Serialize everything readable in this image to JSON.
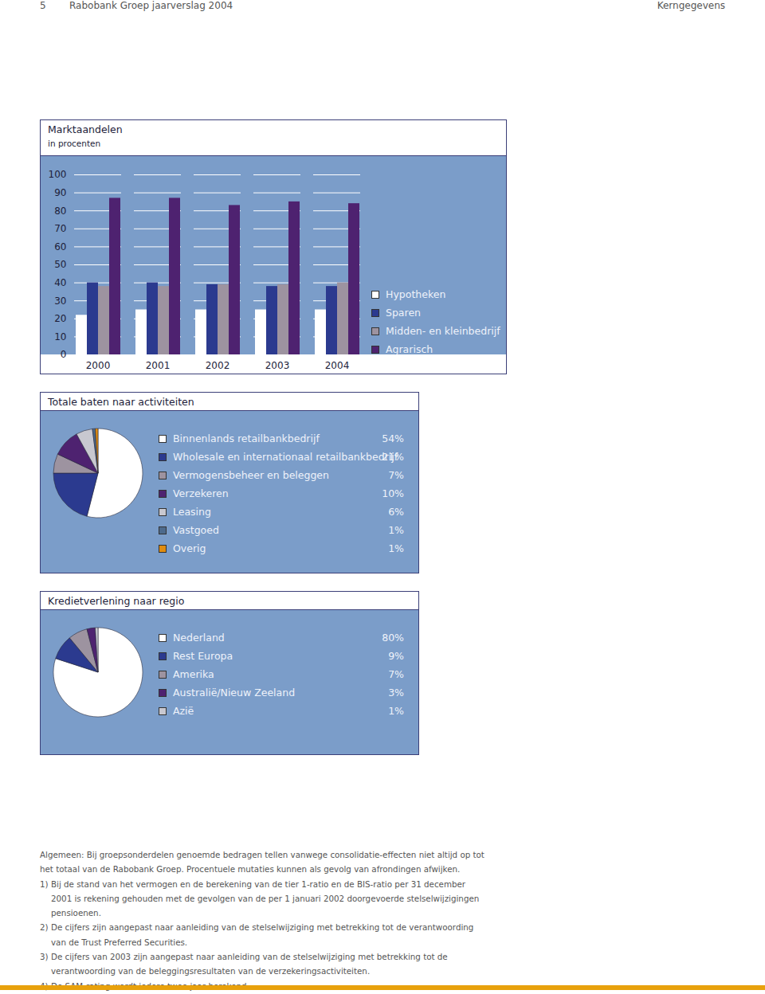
{
  "header": {
    "page": "5",
    "title": "Rabobank Groep jaarverslag 2004",
    "section": "Kerngegevens"
  },
  "chart_data": [
    {
      "type": "bar",
      "title": "Marktaandelen",
      "subtitle": "in procenten",
      "categories": [
        "2000",
        "2001",
        "2002",
        "2003",
        "2004"
      ],
      "series": [
        {
          "name": "Hypotheken",
          "color": "#ffffff",
          "values": [
            22,
            25,
            25,
            25,
            25
          ]
        },
        {
          "name": "Sparen",
          "color": "#2b3a8f",
          "values": [
            40,
            40,
            39,
            38,
            38
          ]
        },
        {
          "name": "Midden- en kleinbedrijf",
          "color": "#9d93a0",
          "values": [
            38,
            38,
            39,
            39,
            40
          ]
        },
        {
          "name": "Agrarisch",
          "color": "#4e2270",
          "values": [
            87,
            87,
            83,
            85,
            84
          ]
        }
      ],
      "ylim": [
        0,
        100
      ],
      "yticks": [
        0,
        10,
        20,
        30,
        40,
        50,
        60,
        70,
        80,
        90,
        100
      ],
      "grid": true,
      "legend": "right"
    },
    {
      "type": "pie",
      "title": "Totale baten naar activiteiten",
      "categories": [
        "Binnenlands retailbankbedrijf",
        "Wholesale en internationaal retailbankbedrijf",
        "Vermogensbeheer en beleggen",
        "Verzekeren",
        "Leasing",
        "Vastgoed",
        "Overig"
      ],
      "values": [
        54,
        21,
        7,
        10,
        6,
        1,
        1
      ],
      "value_labels": [
        "54%",
        "21%",
        "7%",
        "10%",
        "6%",
        "1%",
        "1%"
      ],
      "colors": [
        "#ffffff",
        "#2b3a8f",
        "#9d93a0",
        "#4e2270",
        "#c8c8d0",
        "#4d6a8c",
        "#e08c10"
      ],
      "legend": "right"
    },
    {
      "type": "pie",
      "title": "Kredietverlening naar regio",
      "categories": [
        "Nederland",
        "Rest Europa",
        "Amerika",
        "Australië/Nieuw Zeeland",
        "Azië"
      ],
      "values": [
        80,
        9,
        7,
        3,
        1
      ],
      "value_labels": [
        "80%",
        "9%",
        "7%",
        "3%",
        "1%"
      ],
      "colors": [
        "#ffffff",
        "#2b3a8f",
        "#9d93a0",
        "#4e2270",
        "#c8c8d0"
      ],
      "legend": "right"
    }
  ],
  "notes": {
    "general": "Algemeen: Bij groepsonderdelen genoemde bedragen tellen vanwege consolidatie-effecten niet altijd op tot het totaal van de Rabobank Groep. Procentuele mutaties kunnen als gevolg van afrondingen afwijken.",
    "footnotes": [
      {
        "label": "1)",
        "text": "Bij de stand van het vermogen en de berekening van de tier 1-ratio en de BIS-ratio per 31 december 2001 is rekening gehouden met de gevolgen van de per 1 januari 2002 doorgevoerde stelselwijzigingen pensioenen."
      },
      {
        "label": "2)",
        "text": "De cijfers zijn aangepast naar aanleiding van de stelselwijziging met betrekking tot de verantwoording van de Trust Preferred Securities."
      },
      {
        "label": "3)",
        "text": "De cijfers van 2003 zijn aangepast naar aanleiding van de stelselwijziging met betrekking tot de verantwoording van de beleggingsresultaten van de verzekeringsactiviteiten."
      },
      {
        "label": "4)",
        "text": "De SAM-rating wordt iedere twee jaar berekend."
      }
    ]
  }
}
